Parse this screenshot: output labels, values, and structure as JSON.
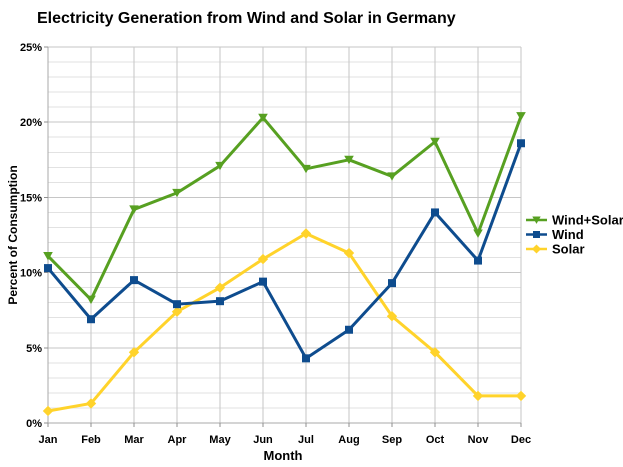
{
  "title": "Electricity Generation from Wind and Solar in Germany",
  "chart_data": {
    "type": "line",
    "title": "Electricity Generation from Wind and Solar in Germany",
    "xlabel": "Month",
    "ylabel": "Percent of Consumption",
    "categories": [
      "Jan",
      "Feb",
      "Mar",
      "Apr",
      "May",
      "Jun",
      "Jul",
      "Aug",
      "Sep",
      "Oct",
      "Nov",
      "Dec"
    ],
    "series": [
      {
        "name": "Wind+Solar",
        "color": "#57A021",
        "marker": "triangle-down",
        "values": [
          11.1,
          8.2,
          14.2,
          15.3,
          17.1,
          20.3,
          16.9,
          17.5,
          16.4,
          18.7,
          12.6,
          20.4
        ]
      },
      {
        "name": "Wind",
        "color": "#0E4C8E",
        "marker": "square",
        "values": [
          10.3,
          6.9,
          9.5,
          7.9,
          8.1,
          9.4,
          4.3,
          6.2,
          9.3,
          14.0,
          10.8,
          18.6
        ]
      },
      {
        "name": "Solar",
        "color": "#FFD32B",
        "marker": "diamond",
        "values": [
          0.8,
          1.3,
          4.7,
          7.4,
          9.0,
          10.9,
          12.6,
          11.3,
          7.1,
          4.7,
          1.8,
          1.8
        ]
      }
    ],
    "ylim": [
      0,
      25
    ],
    "y_major_step": 5,
    "y_minor_step": 1,
    "y_tick_suffix": "%",
    "grid": true,
    "legend_position": "right-middle",
    "draw_order": [
      2,
      0,
      1
    ]
  },
  "style_colors": {
    "grid_minor": "#E2E2E2",
    "grid_major": "#C6C6C6",
    "axis": "#A8A8A8",
    "tick": "#8F8F8F",
    "text": "#000000",
    "background": "#FFFFFF"
  }
}
